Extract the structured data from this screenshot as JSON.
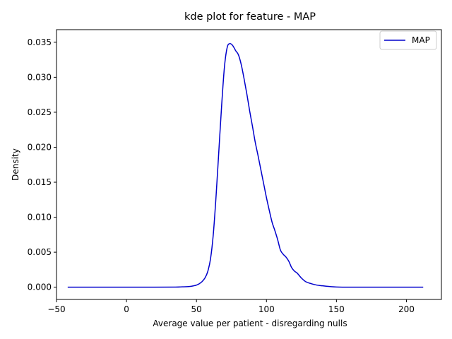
{
  "chart_data": {
    "type": "line",
    "title": "kde plot for feature -  MAP",
    "xlabel": "Average value per patient - disregarding nulls",
    "ylabel": "Density",
    "xlim": [
      -50,
      225
    ],
    "ylim": [
      -0.00175,
      0.0368
    ],
    "xticks": [
      -50,
      0,
      50,
      100,
      150,
      200
    ],
    "xtick_labels": [
      "−50",
      "0",
      "50",
      "100",
      "150",
      "200"
    ],
    "yticks": [
      0.0,
      0.005,
      0.01,
      0.015,
      0.02,
      0.025,
      0.03,
      0.035
    ],
    "ytick_labels": [
      "0.000",
      "0.005",
      "0.010",
      "0.015",
      "0.020",
      "0.025",
      "0.030",
      "0.035"
    ],
    "grid": false,
    "legend": {
      "placement": "top-right",
      "entries": [
        "MAP"
      ]
    },
    "colors": {
      "MAP": "#0000cc"
    },
    "series": [
      {
        "name": "MAP",
        "x": [
          -42,
          -20,
          0,
          20,
          35,
          40,
          45,
          48,
          50,
          52,
          54,
          56,
          58,
          60,
          62,
          64,
          66,
          68,
          70,
          72,
          74,
          76,
          78,
          80,
          82,
          84,
          86,
          88,
          90,
          92,
          94,
          96,
          98,
          100,
          102,
          104,
          106,
          108,
          110,
          112,
          114,
          116,
          118,
          120,
          122,
          125,
          128,
          132,
          136,
          140,
          145,
          150,
          160,
          180,
          200,
          212
        ],
        "y": [
          0.0,
          0.0,
          0.0,
          0.0,
          2e-05,
          5e-05,
          0.0001,
          0.0002,
          0.0003,
          0.0005,
          0.0008,
          0.0013,
          0.0022,
          0.004,
          0.0075,
          0.013,
          0.0195,
          0.026,
          0.0315,
          0.0343,
          0.0348,
          0.0345,
          0.0338,
          0.0332,
          0.0318,
          0.0298,
          0.0276,
          0.0252,
          0.023,
          0.0207,
          0.0188,
          0.0168,
          0.0148,
          0.0128,
          0.011,
          0.0093,
          0.0081,
          0.0068,
          0.0053,
          0.0047,
          0.0043,
          0.0037,
          0.0028,
          0.0023,
          0.002,
          0.0013,
          0.0008,
          0.0005,
          0.0003,
          0.0002,
          0.0001,
          3e-05,
          0.0,
          0.0,
          0.0,
          0.0
        ]
      }
    ]
  }
}
